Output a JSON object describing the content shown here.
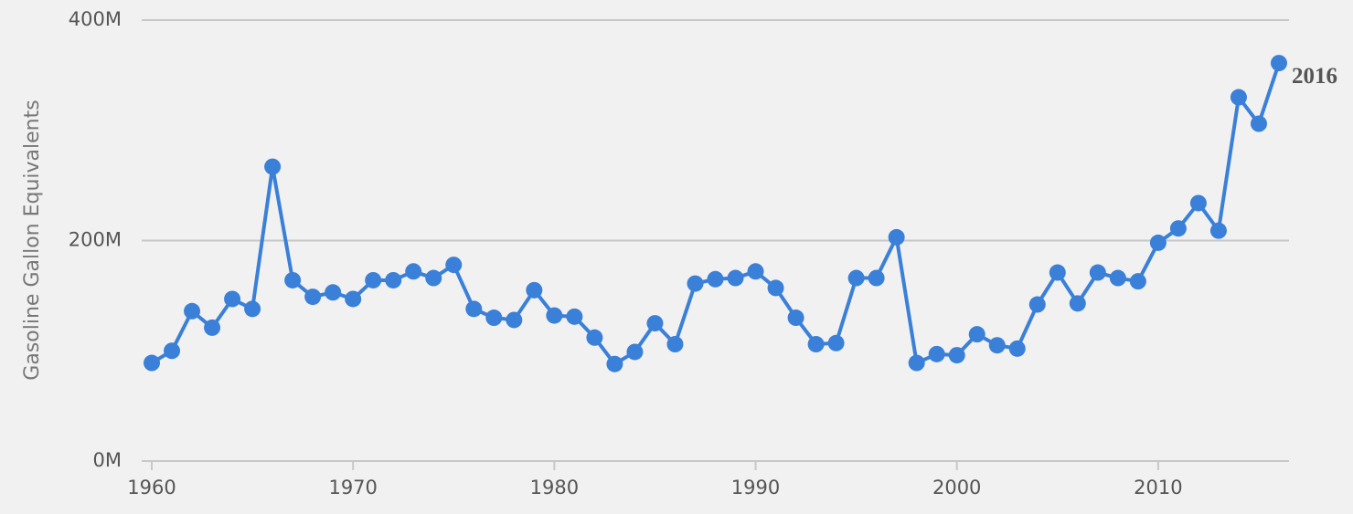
{
  "chart_data": {
    "type": "line",
    "y_axis_label": "Gasoline Gallon Equivalents",
    "annotation": "2016",
    "x": [
      1960,
      1961,
      1962,
      1963,
      1964,
      1965,
      1966,
      1967,
      1968,
      1969,
      1970,
      1971,
      1972,
      1973,
      1974,
      1975,
      1976,
      1977,
      1978,
      1979,
      1980,
      1981,
      1982,
      1983,
      1984,
      1985,
      1986,
      1987,
      1988,
      1989,
      1990,
      1991,
      1992,
      1993,
      1994,
      1995,
      1996,
      1997,
      1998,
      1999,
      2000,
      2001,
      2002,
      2003,
      2004,
      2005,
      2006,
      2007,
      2008,
      2009,
      2010,
      2011,
      2012,
      2013,
      2014,
      2015,
      2016
    ],
    "series": [
      {
        "color": "#3a80d8",
        "values": [
          89,
          100,
          136,
          121,
          147,
          138,
          267,
          164,
          149,
          153,
          147,
          164,
          164,
          172,
          166,
          178,
          138,
          130,
          128,
          155,
          132,
          131,
          112,
          88,
          99,
          125,
          106,
          161,
          165,
          166,
          172,
          157,
          130,
          106,
          107,
          166,
          166,
          203,
          89,
          97,
          96,
          115,
          105,
          102,
          142,
          171,
          143,
          171,
          166,
          163,
          198,
          211,
          234,
          209,
          330,
          306,
          361
        ]
      }
    ],
    "xlim": [
      1959.5,
      2016.5
    ],
    "xticks": [
      1960,
      1970,
      1980,
      1990,
      2000,
      2010
    ],
    "ylim": [
      0,
      400
    ],
    "yticks": [
      {
        "value": 0,
        "label": "0M"
      },
      {
        "value": 200,
        "label": "200M"
      },
      {
        "value": 400,
        "label": "400M"
      }
    ],
    "grid": true
  }
}
